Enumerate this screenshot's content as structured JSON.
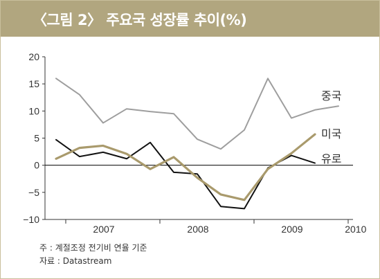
{
  "title": "〈그림 2〉 주요국 성장률 추이(%)",
  "notes": [
    "주 : 계절조정 전기비 연율 기준",
    "자료 : Datastream"
  ],
  "colors": {
    "title_bar": "#b1a67f",
    "china": "#9e9e9e",
    "usa": "#a99a6c",
    "euro": "#111111",
    "zero_line": "#000000"
  },
  "chart_data": {
    "type": "line",
    "x": [
      "2006Q4",
      "2007Q1",
      "2007Q2",
      "2007Q3",
      "2007Q4",
      "2008Q1",
      "2008Q2",
      "2008Q3",
      "2008Q4",
      "2009Q1",
      "2009Q2",
      "2009Q3",
      "2009Q4"
    ],
    "x_tick_labels": [
      "2007",
      "2008",
      "2009",
      "2010"
    ],
    "ylim": [
      -10,
      20
    ],
    "y_ticks": [
      "20",
      "15",
      "10",
      "5",
      "0",
      "−5",
      "−10"
    ],
    "series": [
      {
        "name": "중국",
        "values": [
          16.0,
          13.0,
          7.8,
          10.4,
          9.9,
          9.5,
          4.8,
          3.0,
          6.5,
          16.0,
          8.7,
          10.2,
          10.9
        ]
      },
      {
        "name": "미국",
        "values": [
          1.2,
          3.2,
          3.6,
          2.1,
          -0.7,
          1.5,
          -2.3,
          -5.4,
          -6.4,
          -0.7,
          2.2,
          5.7,
          null
        ]
      },
      {
        "name": "유로",
        "values": [
          4.7,
          1.6,
          2.4,
          1.2,
          4.2,
          -1.3,
          -1.6,
          -7.6,
          -8.0,
          -0.5,
          1.8,
          0.4,
          null
        ]
      }
    ]
  }
}
